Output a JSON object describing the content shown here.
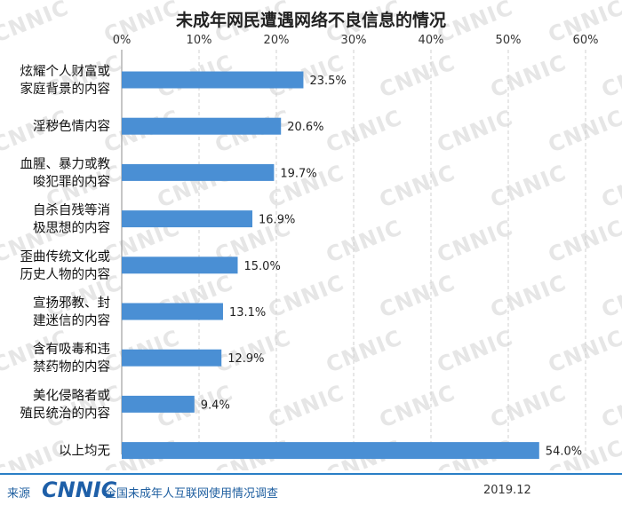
{
  "chart_data": {
    "type": "bar",
    "orientation": "horizontal",
    "title": "未成年网民遭遇网络不良信息的情况",
    "xlim": [
      0,
      60
    ],
    "xticks": [
      "0%",
      "10%",
      "20%",
      "30%",
      "40%",
      "50%",
      "60%"
    ],
    "tick_values": [
      0,
      10,
      20,
      30,
      40,
      50,
      60
    ],
    "x_axis_position": "top",
    "grid": "vertical-dashed",
    "bar_color": "#4a8fd4",
    "categories": [
      [
        "炫耀个人财富或",
        "家庭背景的内容"
      ],
      [
        "淫秽色情内容"
      ],
      [
        "血腥、暴力或教",
        "唆犯罪的内容"
      ],
      [
        "自杀自残等消",
        "极思想的内容"
      ],
      [
        "歪曲传统文化或",
        "历史人物的内容"
      ],
      [
        "宣扬邪教、封",
        "建迷信的内容"
      ],
      [
        "含有吸毒和违",
        "禁药物的内容"
      ],
      [
        "美化侵略者或",
        "殖民统治的内容"
      ],
      [
        "以上均无"
      ]
    ],
    "values": [
      23.5,
      20.6,
      19.7,
      16.9,
      15.0,
      13.1,
      12.9,
      9.4,
      54.0
    ],
    "value_labels": [
      "23.5%",
      "20.6%",
      "19.7%",
      "16.9%",
      "15.0%",
      "13.1%",
      "12.9%",
      "9.4%",
      "54.0%"
    ]
  },
  "watermark": "CNNIC",
  "footer": {
    "source_label": "来源",
    "logo_text": "CNNIC",
    "survey_name": "全国未成年人互联网使用情况调查",
    "date": "2019.12"
  }
}
